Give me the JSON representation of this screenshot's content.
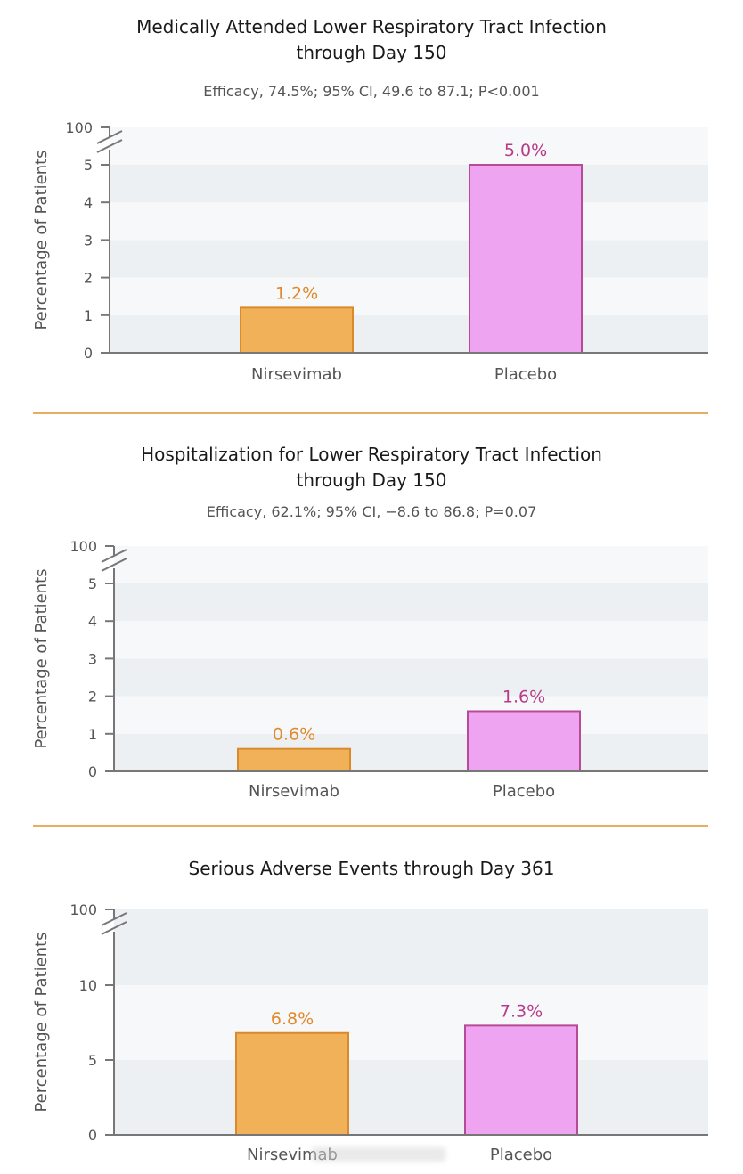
{
  "colors": {
    "nirsevimab_fill": "#f0b159",
    "nirsevimab_stroke": "#d98a2c",
    "nirsevimab_label": "#e0882a",
    "placebo_fill": "#eea4f0",
    "placebo_stroke": "#b84b98",
    "placebo_label": "#b83a88",
    "band_light": "#f7f8f9",
    "band_dark": "#edf0f2",
    "axis": "#777777",
    "divider": "#e8ad5e"
  },
  "chart_data": [
    {
      "type": "bar",
      "title": "Medically Attended Lower Respiratory Tract Infection through Day 150",
      "title_lines": [
        "Medically Attended Lower Respiratory Tract Infection",
        "through Day 150"
      ],
      "subtitle": "Efficacy, 74.5%; 95% CI, 49.6 to 87.1; P<0.001",
      "ylabel": "Percentage of Patients",
      "xlabel": "",
      "categories": [
        "Nirsevimab",
        "Placebo"
      ],
      "values": [
        1.2,
        5.0
      ],
      "value_labels": [
        "1.2%",
        "5.0%"
      ],
      "ylim": [
        0,
        5
      ],
      "yticks": [
        0,
        1,
        2,
        3,
        4,
        5
      ],
      "ytick_labels": [
        "0",
        "1",
        "2",
        "3",
        "4",
        "5"
      ],
      "axis_break_label": "100"
    },
    {
      "type": "bar",
      "title": "Hospitalization for Lower Respiratory Tract Infection through Day 150",
      "title_lines": [
        "Hospitalization for Lower Respiratory Tract Infection",
        "through Day 150"
      ],
      "subtitle": "Efficacy, 62.1%; 95% CI, −8.6 to 86.8; P=0.07",
      "ylabel": "Percentage of Patients",
      "xlabel": "",
      "categories": [
        "Nirsevimab",
        "Placebo"
      ],
      "values": [
        0.6,
        1.6
      ],
      "value_labels": [
        "0.6%",
        "1.6%"
      ],
      "ylim": [
        0,
        5
      ],
      "yticks": [
        0,
        1,
        2,
        3,
        4,
        5
      ],
      "ytick_labels": [
        "0",
        "1",
        "2",
        "3",
        "4",
        "5"
      ],
      "axis_break_label": "100"
    },
    {
      "type": "bar",
      "title": "Serious Adverse Events through Day 361",
      "title_lines": [
        "Serious Adverse Events through Day 361"
      ],
      "subtitle": "",
      "ylabel": "Percentage of Patients",
      "xlabel": "",
      "categories": [
        "Nirsevimab",
        "Placebo"
      ],
      "values": [
        6.8,
        7.3
      ],
      "value_labels": [
        "6.8%",
        "7.3%"
      ],
      "ylim": [
        0,
        10
      ],
      "yticks": [
        0,
        5,
        10
      ],
      "ytick_labels": [
        "0",
        "5",
        "10"
      ],
      "axis_break_label": "100"
    }
  ]
}
